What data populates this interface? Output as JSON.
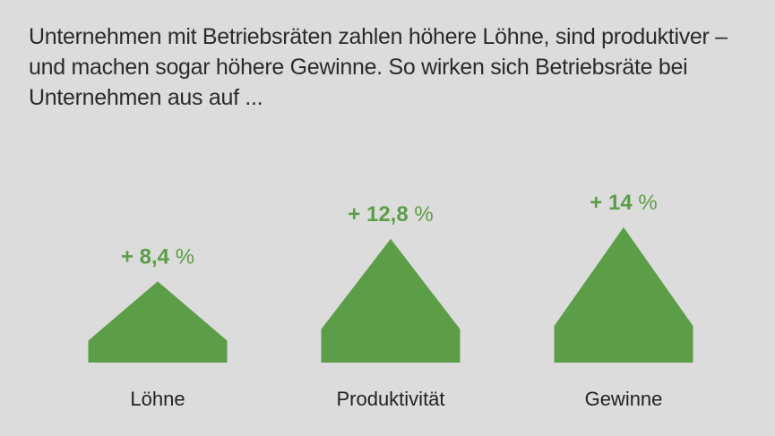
{
  "title": "Unternehmen mit Betriebsräten zahlen höhere Löhne, sind produktiver – und machen sogar höhere Gewinne. So wirken sich Betriebsräte bei Unternehmen aus auf ...",
  "colors": {
    "background": "#dcdcdc",
    "bar": "#5c9e47",
    "label": "#5c9e47",
    "text": "#2b2b2b"
  },
  "chart_data": {
    "type": "bar",
    "shape": "house",
    "categories": [
      "Löhne",
      "Produktivität",
      "Gewinne"
    ],
    "values": [
      8.4,
      12.8,
      14
    ],
    "value_labels": [
      "+ 8,4",
      "+ 12,8",
      "+ 14"
    ],
    "unit": "%",
    "ylim": [
      0,
      16
    ],
    "grid": false,
    "legend": "none"
  }
}
